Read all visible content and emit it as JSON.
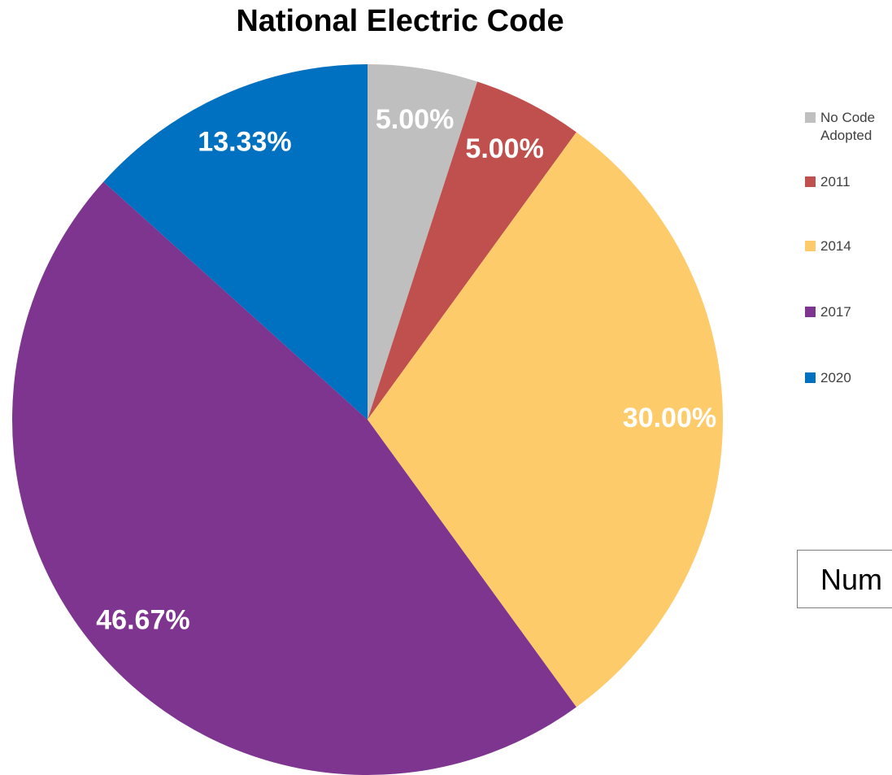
{
  "chart_data": {
    "type": "pie",
    "title": "National Electric Code",
    "categories": [
      "No Code Adopted",
      "2011",
      "2014",
      "2017",
      "2020"
    ],
    "values": [
      5,
      5,
      30,
      46.67,
      13.33
    ],
    "value_labels": [
      "5.00%",
      "5.00%",
      "30.00%",
      "46.67%",
      "13.33%"
    ],
    "colors": [
      "#bfbfbf",
      "#c0504d",
      "#fecb6a",
      "#7e358f",
      "#0070c0"
    ],
    "legend": "right",
    "annotation": "Num"
  }
}
